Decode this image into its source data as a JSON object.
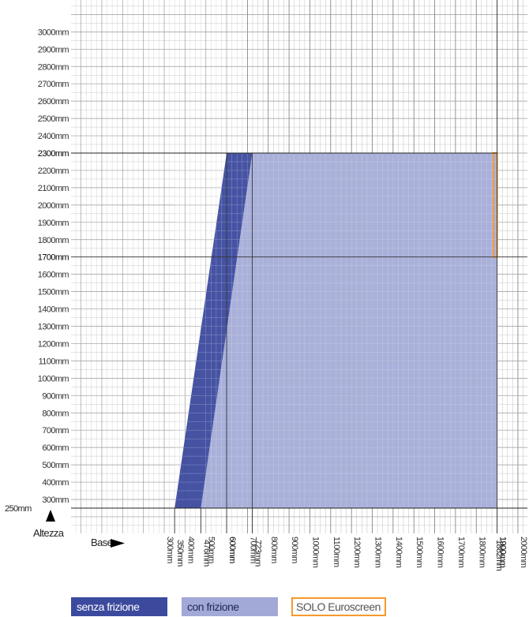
{
  "chart_data": {
    "type": "area",
    "axes": {
      "y_title": "Altezza",
      "x_title": "Base",
      "y_ticks": [
        "300mm",
        "400mm",
        "500mm",
        "600mm",
        "700mm",
        "800mm",
        "900mm",
        "1000mm",
        "1100mm",
        "1200mm",
        "1300mm",
        "1400mm",
        "1500mm",
        "1600mm",
        "1700mm",
        "1800mm",
        "1900mm",
        "2000mm",
        "2100mm",
        "2200mm",
        "2300mm",
        "2400mm",
        "2500mm",
        "2600mm",
        "2700mm",
        "2800mm",
        "2900mm",
        "3000mm"
      ],
      "y_tick_values": [
        300,
        400,
        500,
        600,
        700,
        800,
        900,
        1000,
        1100,
        1200,
        1300,
        1400,
        1500,
        1600,
        1700,
        1800,
        1900,
        2000,
        2100,
        2200,
        2300,
        2400,
        2500,
        2600,
        2700,
        2800,
        2900,
        3000
      ],
      "y_highlight_values": [
        2300,
        1700
      ],
      "y_extra_label": "250mm",
      "y_extra_value": 250,
      "x_ticks": [
        "300mm",
        "400mm",
        "500mm",
        "600mm",
        "700mm",
        "800mm",
        "900mm",
        "1000mm",
        "1100mm",
        "1200mm",
        "1300mm",
        "1400mm",
        "1500mm",
        "1600mm",
        "1700mm",
        "1800mm",
        "1900mm",
        "2000mm"
      ],
      "x_tick_values": [
        300,
        400,
        500,
        600,
        700,
        800,
        900,
        1000,
        1100,
        1200,
        1300,
        1400,
        1500,
        1600,
        1700,
        1800,
        1900,
        2000
      ],
      "x_highlight_values": [
        600,
        1900
      ],
      "x_extra_labels": [
        {
          "text": "350mm",
          "value": 350
        },
        {
          "text": "476mm",
          "value": 476
        },
        {
          "text": "723mm",
          "value": 723
        },
        {
          "text": "1882mm",
          "value": 1882
        }
      ],
      "x_domain": [
        -200,
        2100
      ],
      "y_domain": [
        -50,
        3250
      ]
    },
    "series": [
      {
        "name": "con frizione",
        "color": "#a2a9d6",
        "polygon": [
          [
            476,
            250
          ],
          [
            723,
            2300
          ],
          [
            1900,
            2300
          ],
          [
            1900,
            250
          ]
        ]
      },
      {
        "name": "senza frizione",
        "color": "#3c4a9e",
        "polygon": [
          [
            350,
            250
          ],
          [
            600,
            2300
          ],
          [
            723,
            2300
          ],
          [
            476,
            250
          ]
        ]
      },
      {
        "name": "SOLO Euroscreen",
        "color": "#f39a2e",
        "rect": [
          1882,
          1700,
          1900,
          2300
        ]
      }
    ]
  },
  "legend": {
    "items": [
      {
        "label": "senza frizione",
        "color": "#3c4a9e"
      },
      {
        "label": "con frizione",
        "color": "#a2a9d6"
      },
      {
        "label": "SOLO Euroscreen",
        "color": "#f39a2e"
      }
    ]
  }
}
